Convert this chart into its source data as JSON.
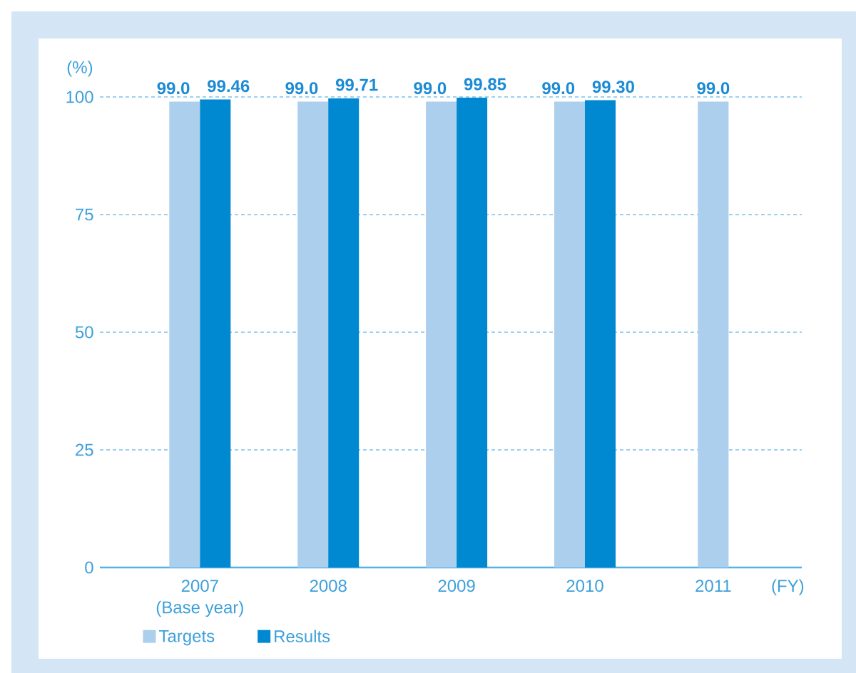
{
  "chart_data": {
    "type": "bar",
    "categories": [
      "2007",
      "2008",
      "2009",
      "2010",
      "2011"
    ],
    "series": [
      {
        "name": "Targets",
        "color": "#abcfec",
        "values": [
          99.0,
          99.0,
          99.0,
          99.0,
          99.0
        ],
        "value_labels": [
          "99.0",
          "99.0",
          "99.0",
          "99.0",
          "99.0"
        ]
      },
      {
        "name": "Results",
        "color": "#0088d1",
        "values": [
          99.46,
          99.71,
          99.85,
          99.3,
          null
        ],
        "value_labels": [
          "99.46",
          "99.71",
          "99.85",
          "99.30",
          null
        ]
      }
    ],
    "ylabel": "(%)",
    "xlabel": "(FY)",
    "ylim": [
      0,
      100
    ],
    "yticks": [
      0,
      25,
      50,
      75,
      100
    ],
    "grid": "y",
    "legend": "bottom",
    "annotations": [
      "(Base year)"
    ]
  }
}
